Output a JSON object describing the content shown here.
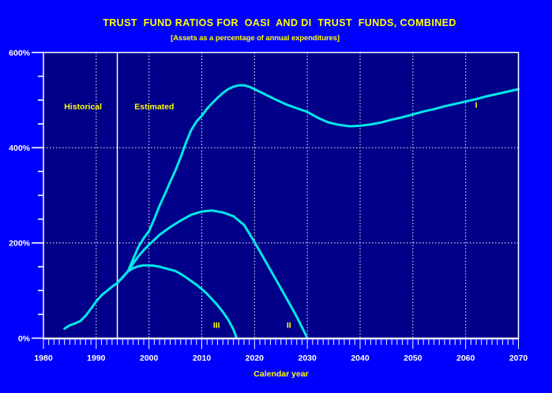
{
  "colors": {
    "outer_background": "#0000FE",
    "plot_background": "#000088",
    "curve": "#00E8E8",
    "axis": "#FFFFFF",
    "tick_text": "#FFFFFF",
    "label_text": "#FFFF00"
  },
  "chart_data": {
    "type": "line",
    "title": "TRUST  FUND RATIOS FOR  OASI  AND DI  TRUST  FUNDS, COMBINED",
    "subtitle": "[Assets as a percentage of annual expenditures]",
    "xlabel": "Calendar year",
    "ylabel": "",
    "xlim": [
      1980,
      2070
    ],
    "ylim": [
      0,
      600
    ],
    "grid": "dotted white, vertical each decade, horizontal at 200% and 400%",
    "legend_position": "none (curves labeled I, II, III on plot)",
    "x_ticks": [
      1980,
      1990,
      2000,
      2010,
      2020,
      2030,
      2040,
      2050,
      2060,
      2070
    ],
    "x_minor_tick_step": 1,
    "y_ticks": [
      {
        "label": "0%",
        "value": 0
      },
      {
        "label": "200%",
        "value": 200
      },
      {
        "label": "400%",
        "value": 400
      },
      {
        "label": "600%",
        "value": 600
      }
    ],
    "y_minor_step": 50,
    "y_major_step": 200,
    "h_gridlines": [
      200,
      400
    ],
    "divider": {
      "year": 1994,
      "label_left": "Historical",
      "label_right": "Estimated"
    },
    "annotations": [
      {
        "text": "Historical",
        "year": 1987.5,
        "value": 487
      },
      {
        "text": "Estimated",
        "year": 2001.0,
        "value": 487
      },
      {
        "text": "I",
        "year": 2062.0,
        "value": 491
      },
      {
        "text": "II",
        "year": 2026.5,
        "value": 28
      },
      {
        "text": "III",
        "year": 2012.8,
        "value": 28
      }
    ],
    "series": [
      {
        "name": "Historical",
        "x": [
          1984,
          1985,
          1986,
          1987,
          1988,
          1989,
          1990,
          1991,
          1992,
          1993,
          1994
        ],
        "y": [
          20,
          27,
          31,
          36,
          47,
          62,
          77,
          90,
          99,
          108,
          116
        ]
      },
      {
        "name": "I",
        "x": [
          1994,
          1995,
          1996,
          1997,
          1998,
          1999,
          2000,
          2001,
          2002,
          2003,
          2004,
          2005,
          2006,
          2007,
          2008,
          2009,
          2010,
          2011,
          2012,
          2013,
          2014,
          2015,
          2016,
          2017,
          2018,
          2019,
          2020,
          2022,
          2024,
          2026,
          2028,
          2030,
          2032,
          2034,
          2036,
          2038,
          2040,
          2042,
          2044,
          2046,
          2048,
          2050,
          2052,
          2054,
          2056,
          2058,
          2060,
          2062,
          2064,
          2066,
          2068,
          2070
        ],
        "y": [
          116,
          128,
          140,
          166,
          192,
          210,
          225,
          250,
          278,
          302,
          328,
          352,
          380,
          410,
          437,
          455,
          467,
          482,
          494,
          505,
          515,
          523,
          528,
          531,
          531,
          528,
          523,
          512,
          501,
          491,
          483,
          475,
          463,
          453,
          448,
          445,
          446,
          449,
          453,
          459,
          464,
          470,
          476,
          481,
          487,
          492,
          497,
          502,
          508,
          513,
          518,
          523
        ]
      },
      {
        "name": "II",
        "x": [
          1994,
          1995,
          1996,
          1997,
          1998,
          1999,
          2000,
          2002,
          2004,
          2006,
          2008,
          2010,
          2012,
          2014,
          2016,
          2018,
          2020,
          2022,
          2024,
          2026,
          2028,
          2030
        ],
        "y": [
          116,
          128,
          140,
          157,
          172,
          185,
          196,
          217,
          233,
          247,
          259,
          266,
          268,
          264,
          256,
          238,
          202,
          163,
          124,
          85,
          45,
          0
        ]
      },
      {
        "name": "III",
        "x": [
          1994,
          1995,
          1996,
          1997,
          1998,
          1999,
          2000,
          2001,
          2002,
          2003,
          2004,
          2005,
          2006,
          2007,
          2008,
          2009,
          2010,
          2011,
          2012,
          2013,
          2014,
          2015,
          2016,
          2016.6
        ],
        "y": [
          116,
          128,
          140,
          147,
          151,
          153,
          153,
          152,
          150,
          147,
          144,
          141,
          135,
          128,
          120,
          112,
          103,
          93,
          81,
          69,
          55,
          39,
          18,
          0
        ]
      }
    ]
  }
}
